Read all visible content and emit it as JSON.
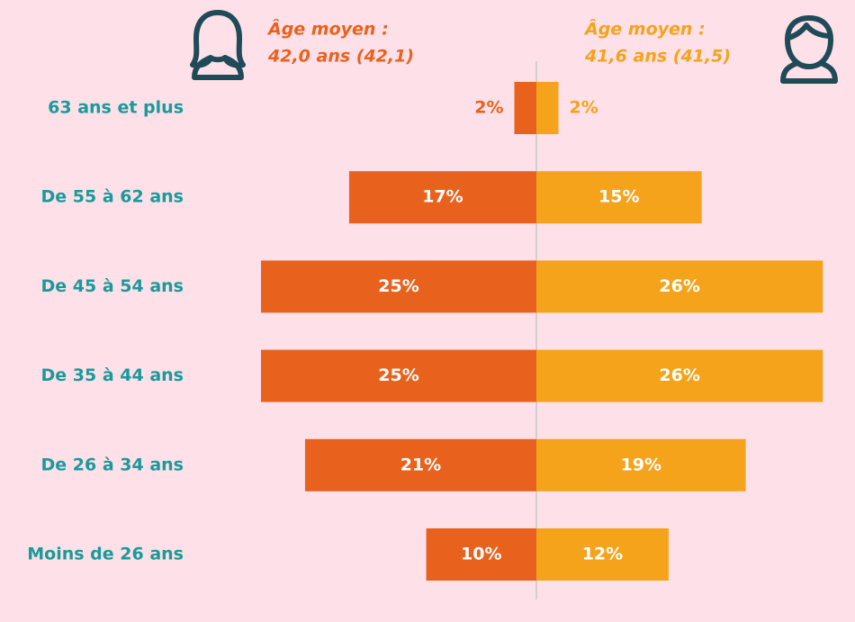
{
  "chart_data": {
    "type": "pyramid",
    "categories": [
      "63 ans et plus",
      "De 55 à 62 ans",
      "De 45 à 54 ans",
      "De 35 à 44 ans",
      "De 26 à 34 ans",
      "Moins de 26 ans"
    ],
    "series": [
      {
        "color": "#e8621e",
        "values": [
          2,
          17,
          25,
          25,
          21,
          10
        ],
        "value_labels": [
          "2%",
          "17%",
          "25%",
          "25%",
          "21%",
          "10%"
        ]
      },
      {
        "color": "#f5a31a",
        "values": [
          2,
          15,
          26,
          26,
          19,
          12
        ],
        "value_labels": [
          "2%",
          "15%",
          "26%",
          "26%",
          "19%",
          "12%"
        ]
      }
    ],
    "annotations": [
      {
        "lines": [
          "Âge moyen :",
          "42,0 ans (42,1)"
        ],
        "color": "#e8621e"
      },
      {
        "lines": [
          "Âge moyen :",
          "41,6 ans (41,5)"
        ],
        "color": "#f5a31a"
      }
    ]
  }
}
